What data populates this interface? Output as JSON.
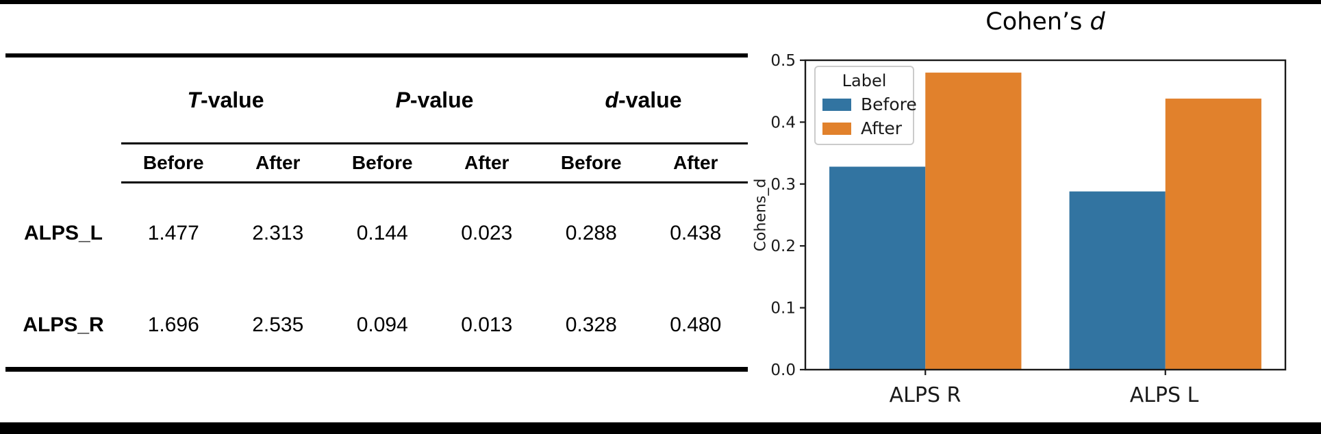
{
  "page": {
    "background": "#ffffff",
    "top_bar_color": "#000000",
    "bottom_bar_color": "#000000"
  },
  "table": {
    "group_headers": [
      {
        "letter": "T",
        "suffix": "-value"
      },
      {
        "letter": "P",
        "suffix": "-value"
      },
      {
        "letter": "d",
        "suffix": "-value"
      }
    ],
    "sub_headers": [
      "Before",
      "After",
      "Before",
      "After",
      "Before",
      "After"
    ],
    "rows": [
      {
        "label": "ALPS_L",
        "values": [
          "1.477",
          "2.313",
          "0.144",
          "0.023",
          "0.288",
          "0.438"
        ]
      },
      {
        "label": "ALPS_R",
        "values": [
          "1.696",
          "2.535",
          "0.094",
          "0.013",
          "0.328",
          "0.480"
        ]
      }
    ]
  },
  "chart_data": {
    "type": "bar",
    "title_prefix": "Cohen’s ",
    "title_italic": "d",
    "ylabel": "Cohens_d",
    "xlabel": "",
    "categories": [
      "ALPS R",
      "ALPS L"
    ],
    "series": [
      {
        "name": "Before",
        "color": "#3274A1",
        "values": [
          0.328,
          0.288
        ]
      },
      {
        "name": "After",
        "color": "#E1812C",
        "values": [
          0.48,
          0.438
        ]
      }
    ],
    "ylim": [
      0.0,
      0.5
    ],
    "yticks": [
      0.0,
      0.1,
      0.2,
      0.3,
      0.4,
      0.5
    ],
    "grid": false,
    "legend_title": "Label",
    "legend_position": "upper left",
    "axis_color": "#1a1a1a"
  }
}
